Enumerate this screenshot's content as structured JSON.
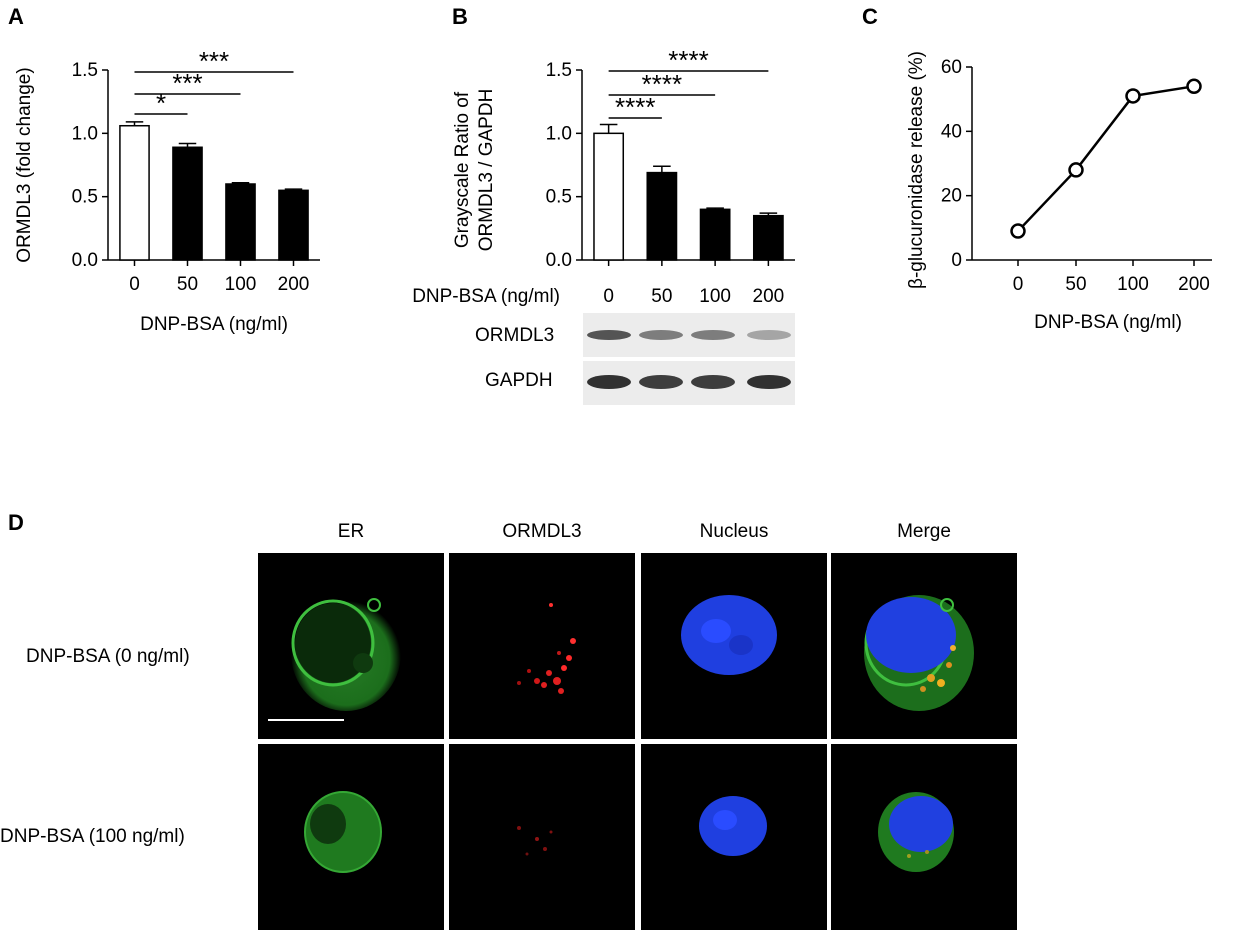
{
  "panels": {
    "A": {
      "letter": "A",
      "ylabel": "ORMDL3 (fold change)",
      "xlabel": "DNP-BSA (ng/ml)",
      "chart_data": {
        "type": "bar",
        "categories": [
          "0",
          "50",
          "100",
          "200"
        ],
        "values": [
          1.06,
          0.89,
          0.6,
          0.55
        ],
        "errors": [
          0.03,
          0.03,
          0.01,
          0.01
        ],
        "ylim": [
          0,
          1.5
        ],
        "yticks": [
          "0.0",
          "0.5",
          "1.0",
          "1.5"
        ],
        "bar_colors": [
          "#ffffff",
          "#000000",
          "#000000",
          "#000000"
        ],
        "significance": [
          {
            "from": "0",
            "to": "50",
            "label": "*"
          },
          {
            "from": "0",
            "to": "100",
            "label": "***"
          },
          {
            "from": "0",
            "to": "200",
            "label": "***"
          }
        ]
      }
    },
    "B": {
      "letter": "B",
      "ylabel_line1": "Grayscale Ratio of",
      "ylabel_line2": "ORMDL3 / GAPDH",
      "xlabel": "DNP-BSA (ng/ml)",
      "blot_labels": [
        "ORMDL3",
        "GAPDH"
      ],
      "chart_data": {
        "type": "bar",
        "categories": [
          "0",
          "50",
          "100",
          "200"
        ],
        "values": [
          1.0,
          0.69,
          0.4,
          0.35
        ],
        "errors": [
          0.07,
          0.05,
          0.01,
          0.02
        ],
        "ylim": [
          0,
          1.5
        ],
        "yticks": [
          "0.0",
          "0.5",
          "1.0",
          "1.5"
        ],
        "bar_colors": [
          "#ffffff",
          "#000000",
          "#000000",
          "#000000"
        ],
        "significance": [
          {
            "from": "0",
            "to": "50",
            "label": "****"
          },
          {
            "from": "0",
            "to": "100",
            "label": "****"
          },
          {
            "from": "0",
            "to": "200",
            "label": "****"
          }
        ],
        "blot": {
          "ORMDL3": [
            0.75,
            0.55,
            0.55,
            0.35
          ],
          "GAPDH": [
            0.85,
            0.8,
            0.8,
            0.85
          ]
        }
      }
    },
    "C": {
      "letter": "C",
      "ylabel": "β-glucuronidase release (%)",
      "xlabel": "DNP-BSA (ng/ml)",
      "chart_data": {
        "type": "line",
        "x": [
          "0",
          "50",
          "100",
          "200"
        ],
        "values": [
          9,
          28,
          51,
          54
        ],
        "ylim": [
          0,
          60
        ],
        "yticks": [
          "0",
          "20",
          "40",
          "60"
        ]
      }
    },
    "D": {
      "letter": "D",
      "columns": [
        "ER",
        "ORMDL3",
        "Nucleus",
        "Merge"
      ],
      "rows": [
        "DNP-BSA (0 ng/ml)",
        "DNP-BSA (100 ng/ml)"
      ]
    }
  }
}
